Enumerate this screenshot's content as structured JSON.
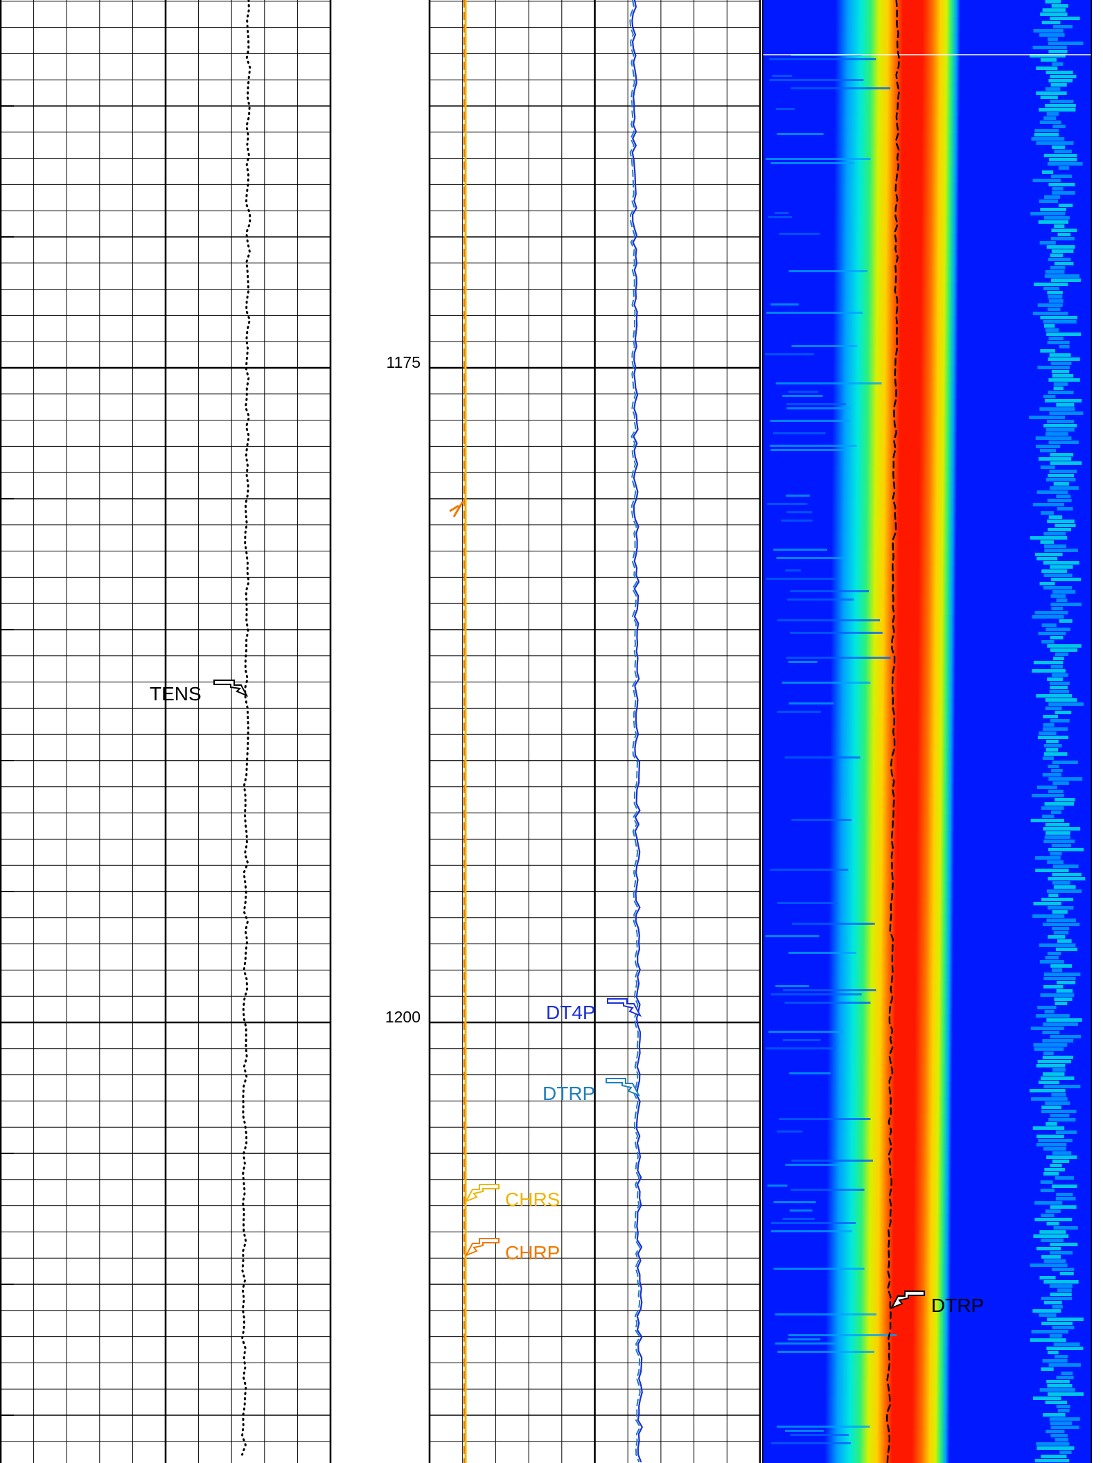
{
  "depth_track": {
    "labels": [
      {
        "depth": 1175,
        "text": "1175"
      },
      {
        "depth": 1200,
        "text": "1200"
      }
    ],
    "visible_range": [
      1161.1,
      1216.9
    ]
  },
  "track1": {
    "curves": [
      {
        "name": "TENS",
        "label": "TENS",
        "color": "#000000",
        "style": "dotted"
      }
    ]
  },
  "track2": {
    "curves": [
      {
        "name": "DT4P",
        "label": "DT4P",
        "color": "#1a2fd8",
        "style": "solid"
      },
      {
        "name": "DTRP",
        "label": "DTRP",
        "color": "#1e7fc0",
        "style": "dashed"
      },
      {
        "name": "CHRS",
        "label": "CHRS",
        "color": "#f0b400",
        "style": "solid"
      },
      {
        "name": "CHRP",
        "label": "CHRP",
        "color": "#f07800",
        "style": "dashed"
      }
    ]
  },
  "track3": {
    "type": "vdl-colormap",
    "colors": [
      "#0019ff",
      "#00a0ff",
      "#00e8e0",
      "#2cf07a",
      "#d8f000",
      "#ffd000",
      "#ff7000",
      "#ff1800"
    ],
    "curves": [
      {
        "name": "DTRP",
        "label": "DTRP",
        "color": "#000000",
        "style": "dashed"
      }
    ]
  }
}
